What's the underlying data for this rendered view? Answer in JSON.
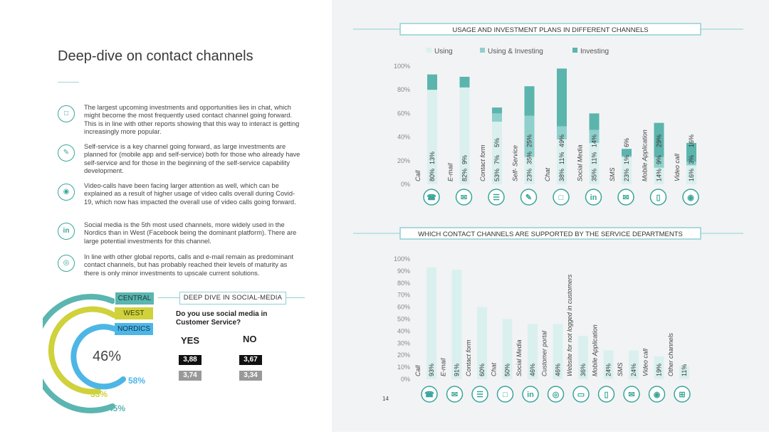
{
  "left": {
    "title": "Deep-dive on contact channels",
    "bullets": [
      {
        "icon": "chat-icon",
        "text": "The largest upcoming investments and opportunities lies in chat, which might become the most frequently used contact channel going forward. This is in line with other reports showing that this way to interact is getting increasingly more popular."
      },
      {
        "icon": "self-service-icon",
        "text": "Self-service is a key channel going forward, as large investments are planned for (mobile app and self-service) both for those who already have self-service and for those in the beginning of the self-service capability development."
      },
      {
        "icon": "video-call-icon",
        "text": "Video-calls have been facing larger attention as well, which can be explained as a result of higher usage of video calls overall during Covid-19, which now has impacted the overall use of video calls going forward."
      },
      {
        "icon": "linkedin-icon",
        "text": "Social media is the 5th most used channels, more widely used in the Nordics than in West (Facebook being the dominant platform). There are large potential investments for this channel."
      },
      {
        "icon": "globe-icon",
        "text": "In line with other global reports, calls and e-mail remain as predominant contact channels, but has probably reached their levels of maturity as there is only minor investments to upscale current solutions."
      }
    ]
  },
  "regions": {
    "tags": [
      "CENTRAL",
      "WEST",
      "NORDICS"
    ],
    "colors": {
      "central": "#5bb5b0",
      "west": "#cfd23a",
      "nordics": "#4db6e6"
    },
    "center_value": "46%",
    "central_value": "45%",
    "west_value": "33%",
    "nordics_value": "58%"
  },
  "social": {
    "panel_title": "DEEP DIVE IN SOCIAL-MEDIA",
    "question": "Do you use social media in Customer Service?",
    "yes_label": "YES",
    "no_label": "NO",
    "yes_values": [
      "3,88",
      "3,74"
    ],
    "no_values": [
      "3,67",
      "3,34"
    ]
  },
  "page_number": "14",
  "chart_data": [
    {
      "type": "bar",
      "title": "USAGE AND INVESTMENT PLANS IN DIFFERENT CHANNELS",
      "legend": [
        "Using",
        "Using & Investing",
        "Investing"
      ],
      "colors": [
        "#d9f0ef",
        "#8fd0cc",
        "#5bb5ad"
      ],
      "categories": [
        "Call",
        "E-mail",
        "Contact form",
        "Self- Service",
        "Chat",
        "Social Media",
        "SMS",
        "Mobile Application",
        "Video call"
      ],
      "icons": [
        "phone-icon",
        "email-icon",
        "contact-form-icon",
        "self-service-icon",
        "chat-icon",
        "linkedin-icon",
        "sms-icon",
        "mobile-icon",
        "video-call-icon"
      ],
      "series": [
        {
          "name": "Using",
          "values": [
            80,
            82,
            53,
            23,
            38,
            35,
            23,
            14,
            16
          ]
        },
        {
          "name": "Using & Investing",
          "values": [
            0,
            0,
            7,
            35,
            11,
            11,
            1,
            9,
            3
          ]
        },
        {
          "name": "Investing",
          "values": [
            13,
            9,
            5,
            25,
            49,
            14,
            6,
            29,
            16
          ]
        }
      ],
      "labels": [
        [
          "80%",
          "",
          "13%"
        ],
        [
          "82%",
          "",
          "9%"
        ],
        [
          "53%",
          "7%",
          "5%"
        ],
        [
          "23%",
          "35%",
          "25%"
        ],
        [
          "38%",
          "11%",
          "49%"
        ],
        [
          "35%",
          "11%",
          "14%"
        ],
        [
          "23%",
          "1%",
          "6%"
        ],
        [
          "14%",
          "9%",
          "29%"
        ],
        [
          "16%",
          "3%",
          "16%"
        ]
      ],
      "ylim": [
        0,
        100
      ],
      "yticks": [
        "0%",
        "20%",
        "40%",
        "60%",
        "80%",
        "100%"
      ]
    },
    {
      "type": "bar",
      "title": "WHICH CONTACT CHANNELS ARE SUPPORTED BY THE SERVICE DEPARTMENTS",
      "colors": [
        "#d9f0ef"
      ],
      "categories": [
        "Call",
        "E-mail",
        "Contact form",
        "Chat",
        "Social Media",
        "Customer portal",
        "Website for not logged in customers",
        "Mobile Application",
        "SMS",
        "Video call",
        "Other channels"
      ],
      "icons": [
        "phone-icon",
        "email-icon",
        "contact-form-icon",
        "chat-icon",
        "linkedin-icon",
        "customer-portal-icon",
        "website-icon",
        "mobile-icon",
        "sms-icon",
        "video-call-icon",
        "grid-icon"
      ],
      "values": [
        93,
        91,
        60,
        50,
        46,
        46,
        36,
        24,
        24,
        19,
        11
      ],
      "labels": [
        "93%",
        "91%",
        "60%",
        "50%",
        "46%",
        "46%",
        "36%",
        "24%",
        "24%",
        "19%",
        "11%"
      ],
      "ylim": [
        0,
        100
      ],
      "yticks": [
        "0%",
        "10%",
        "20%",
        "30%",
        "40%",
        "50%",
        "60%",
        "70%",
        "80%",
        "90%",
        "100%"
      ]
    }
  ]
}
